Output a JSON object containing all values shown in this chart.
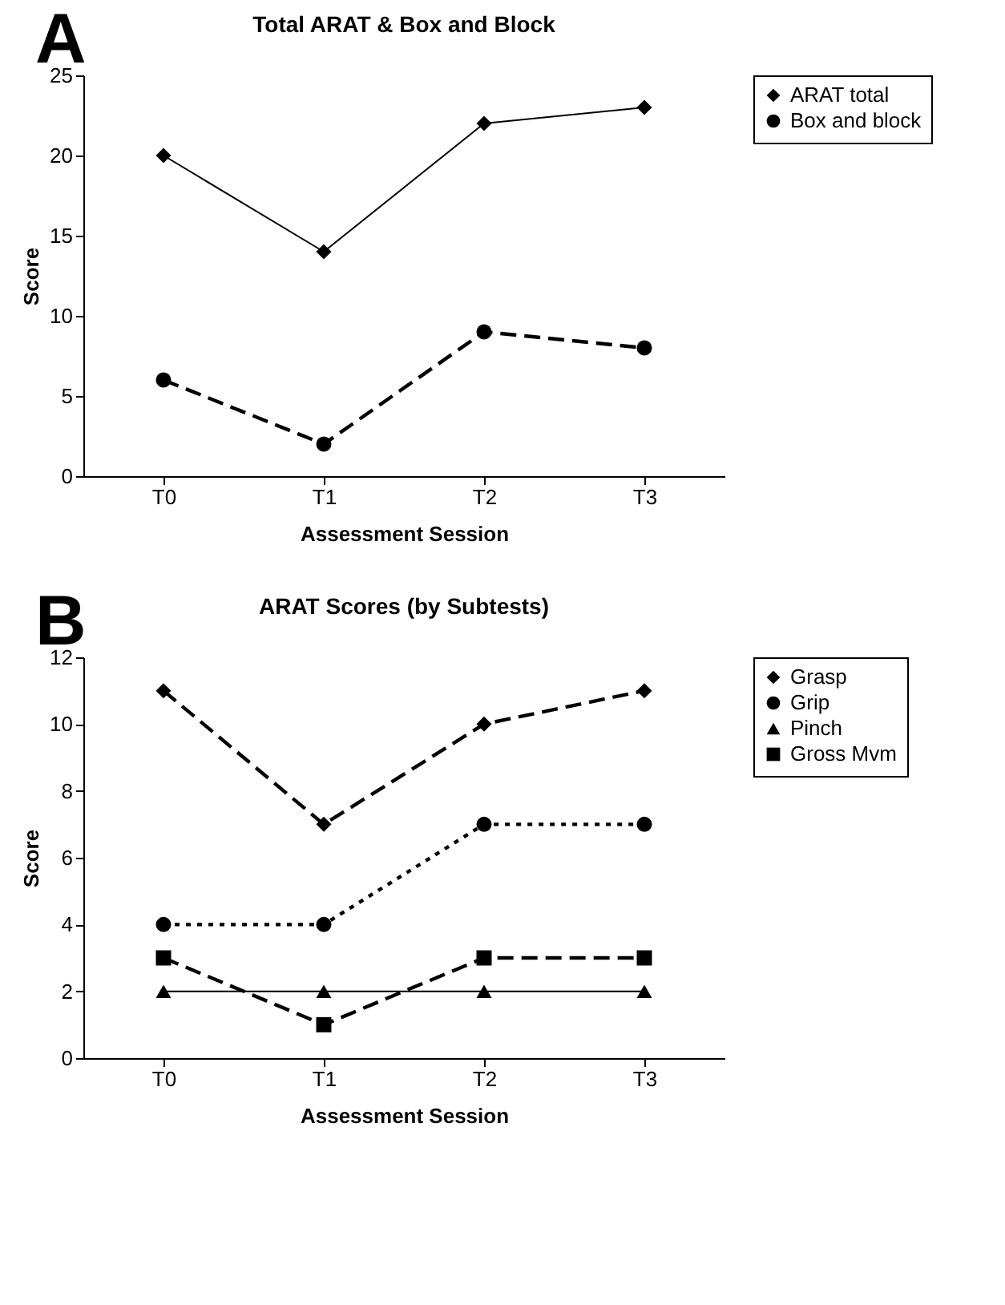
{
  "chart_data": [
    {
      "type": "line",
      "title": "Total ARAT & Box and Block",
      "xlabel": "Assessment Session",
      "ylabel": "Score",
      "annotations": [
        "A"
      ],
      "categories": [
        "T0",
        "T1",
        "T2",
        "T3"
      ],
      "series": [
        {
          "name": "ARAT total",
          "color": "#000000",
          "values": [
            20,
            14,
            22,
            23
          ],
          "marker": "diamond",
          "line_style": "solid"
        },
        {
          "name": "Box and block",
          "color": "#000000",
          "values": [
            6,
            2,
            9,
            8
          ],
          "marker": "circle",
          "line_style": "dashed"
        }
      ],
      "ylim": [
        0,
        25
      ],
      "yticks": [
        0,
        5,
        10,
        15,
        20,
        25
      ],
      "grid": false,
      "legend": "top right"
    },
    {
      "type": "line",
      "title": "ARAT Scores (by Subtests)",
      "xlabel": "Assessment Session",
      "ylabel": "Score",
      "annotations": [
        "B"
      ],
      "categories": [
        "T0",
        "T1",
        "T2",
        "T3"
      ],
      "series": [
        {
          "name": "Grasp",
          "color": "#000000",
          "values": [
            11,
            7,
            10,
            11
          ],
          "marker": "diamond",
          "line_style": "dashed"
        },
        {
          "name": "Grip",
          "color": "#000000",
          "values": [
            4,
            4,
            7,
            7
          ],
          "marker": "circle",
          "line_style": "dotted"
        },
        {
          "name": "Pinch",
          "color": "#000000",
          "values": [
            2,
            2,
            2,
            2
          ],
          "marker": "triangle",
          "line_style": "solid"
        },
        {
          "name": "Gross Mvm",
          "color": "#000000",
          "values": [
            3,
            1,
            3,
            3
          ],
          "marker": "square",
          "line_style": "dashed"
        }
      ],
      "ylim": [
        0,
        12
      ],
      "yticks": [
        0,
        2,
        4,
        6,
        8,
        10,
        12
      ],
      "grid": false,
      "legend": "right"
    }
  ]
}
